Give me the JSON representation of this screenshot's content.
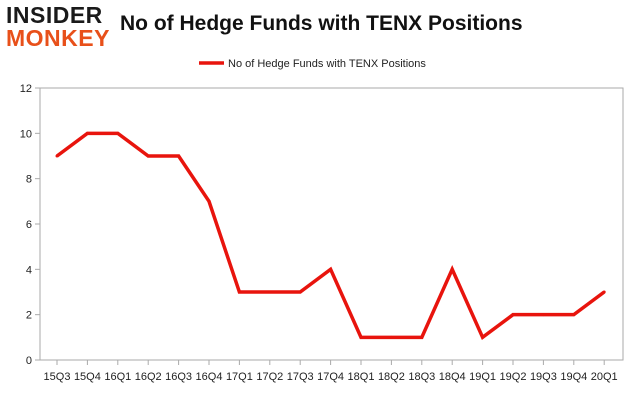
{
  "logo": {
    "line1": "INSIDER",
    "line2": "MONKEY"
  },
  "title": "No of Hedge Funds with TENX Positions",
  "colors": {
    "series": "#e8140d",
    "logo_accent": "#e8501a",
    "axis": "#aaaaaa"
  },
  "chart_data": {
    "type": "line",
    "title": "No of Hedge Funds with TENX Positions",
    "xlabel": "",
    "ylabel": "",
    "categories": [
      "15Q3",
      "15Q4",
      "16Q1",
      "16Q2",
      "16Q3",
      "16Q4",
      "17Q1",
      "17Q2",
      "17Q3",
      "17Q4",
      "18Q1",
      "18Q2",
      "18Q3",
      "18Q4",
      "19Q1",
      "19Q2",
      "19Q3",
      "19Q4",
      "20Q1"
    ],
    "series": [
      {
        "name": "No of Hedge Funds with TENX Positions",
        "values": [
          9,
          10,
          10,
          9,
          9,
          7,
          3,
          3,
          3,
          4,
          1,
          1,
          1,
          4,
          1,
          2,
          2,
          2,
          3
        ]
      }
    ],
    "ylim": [
      0,
      12
    ],
    "yticks": [
      "0",
      "2",
      "4",
      "6",
      "8",
      "10",
      "12"
    ],
    "grid": false,
    "legend_position": "top-center"
  }
}
